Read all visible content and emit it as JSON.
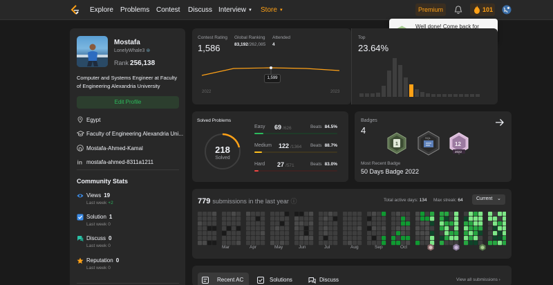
{
  "nav": {
    "links": [
      "Explore",
      "Problems",
      "Contest",
      "Discuss",
      "Interview",
      "Store"
    ],
    "premium": "Premium",
    "streak": "101",
    "colors": {
      "accent": "#ffa116",
      "bg": "#282828"
    }
  },
  "notification": {
    "text": "Well done! Come back for tomorrow's challenge!"
  },
  "profile": {
    "name": "Mostafa",
    "handle": "LonelyWhale3",
    "rank_label": "Rank",
    "rank": "256,138",
    "bio": "Computer and Systems Engineer at Faculty of Engineering Alexandria University",
    "edit_button": "Edit Profile",
    "location": "Egypt",
    "school": "Faculty of Engineering Alexandria Uni...",
    "github": "Mostafa-Ahmed-Kamal",
    "linkedin": "mostafa-ahmed-8311a1211"
  },
  "community": {
    "title": "Community Stats",
    "views": {
      "label": "Views",
      "value": "19",
      "sub": "Last week",
      "delta": "+2"
    },
    "solution": {
      "label": "Solution",
      "value": "1",
      "sub": "Last week",
      "delta": "0"
    },
    "discuss": {
      "label": "Discuss",
      "value": "0",
      "sub": "Last week",
      "delta": "0"
    },
    "reputation": {
      "label": "Reputation",
      "value": "0",
      "sub": "Last week",
      "delta": "0"
    }
  },
  "contest": {
    "rating_label": "Contest Rating",
    "rating": "1,586",
    "global_label": "Global Ranking",
    "global_rank": "83,192",
    "global_total": "/262,085",
    "attended_label": "Attended",
    "attended": "4",
    "tooltip": "1,599",
    "year_start": "2022",
    "year_end": "2023",
    "top_label": "Top",
    "top_value": "23.64%"
  },
  "solved": {
    "title": "Solved Problems",
    "total": "218",
    "total_label": "Solved",
    "beats_label": "Beats",
    "easy": {
      "name": "Easy",
      "count": "69",
      "total": "/626",
      "beats": "84.5%",
      "fraction": 0.11,
      "color": "#2cbb5d",
      "track": "#1f3a28"
    },
    "medium": {
      "name": "Medium",
      "count": "122",
      "total": "/1364",
      "beats": "88.7%",
      "fraction": 0.09,
      "color": "#ffc01e",
      "track": "#3d3520"
    },
    "hard": {
      "name": "Hard",
      "count": "27",
      "total": "/571",
      "beats": "83.0%",
      "fraction": 0.05,
      "color": "#ef4743",
      "track": "#3d2322"
    }
  },
  "badges": {
    "label": "Badges",
    "count": "4",
    "recent_label": "Most Recent Badge",
    "recent_name": "50 Days Badge 2022",
    "badge_text": "12",
    "badge_year": "2022"
  },
  "submissions": {
    "count": "779",
    "label": "submissions in the last year",
    "active_label": "Total active days:",
    "active_days": "134",
    "streak_label": "Max streak:",
    "max_streak": "64",
    "filter": "Current",
    "months": [
      "Mar",
      "Apr",
      "May",
      "Jun",
      "Jul",
      "Aug",
      "Sep",
      "Oct",
      "Nov",
      "Dec",
      "Jan"
    ]
  },
  "tabs": {
    "items": [
      "Recent AC",
      "Solutions",
      "Discuss"
    ],
    "view_all": "View all submissions"
  }
}
